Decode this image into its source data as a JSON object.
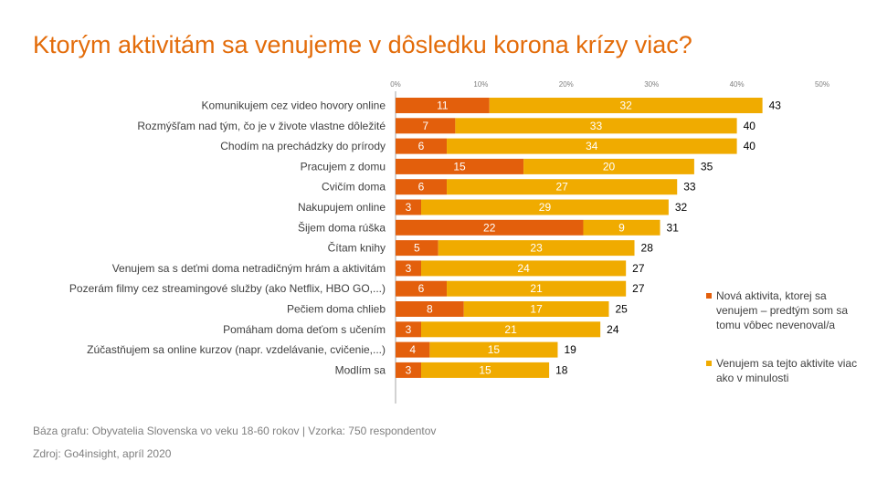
{
  "title": "Ktorým aktivitám sa venujeme v dôsledku korona krízy viac?",
  "colors": {
    "title": "#E36C0A",
    "new": "#E35F0C",
    "more": "#F0AB00",
    "text": "#404040",
    "axis": "#a6a6a6"
  },
  "chart_data": {
    "type": "bar",
    "orientation": "horizontal",
    "stacked": true,
    "x_ticks": [
      "0%",
      "10%",
      "20%",
      "30%",
      "40%",
      "50%"
    ],
    "xlim": [
      0,
      50
    ],
    "categories": [
      "Komunikujem cez video hovory online",
      "Rozmýšľam nad tým, čo je v živote vlastne dôležité",
      "Chodím na prechádzky do prírody",
      "Pracujem z domu",
      "Cvičím doma",
      "Nakupujem online",
      "Šijem doma rúška",
      "Čítam knihy",
      "Venujem sa s deťmi doma netradičným hrám a aktivitám",
      "Pozerám filmy cez streamingové služby (ako Netflix, HBO GO,...)",
      "Pečiem doma chlieb",
      "Pomáham doma deťom s učením",
      "Zúčastňujem sa online kurzov (napr. vzdelávanie, cvičenie,...)",
      "Modlím sa"
    ],
    "series": [
      {
        "name": "Nová aktivita, ktorej sa venujem – predtým som sa tomu vôbec nevenoval/a",
        "values": [
          11,
          7,
          6,
          15,
          6,
          3,
          22,
          5,
          3,
          6,
          8,
          3,
          4,
          3
        ]
      },
      {
        "name": "Venujem sa tejto aktivite viac ako v minulosti",
        "values": [
          32,
          33,
          34,
          20,
          27,
          29,
          9,
          23,
          24,
          21,
          17,
          21,
          15,
          15
        ]
      }
    ],
    "totals": [
      43,
      40,
      40,
      35,
      33,
      32,
      31,
      28,
      27,
      27,
      25,
      24,
      19,
      18
    ],
    "legend_position": "right"
  },
  "footer": {
    "base": "Báza grafu: Obyvatelia Slovenska vo veku 18-60 rokov | Vzorka: 750 respondentov",
    "source": "Zdroj: Go4insight, apríl 2020"
  }
}
